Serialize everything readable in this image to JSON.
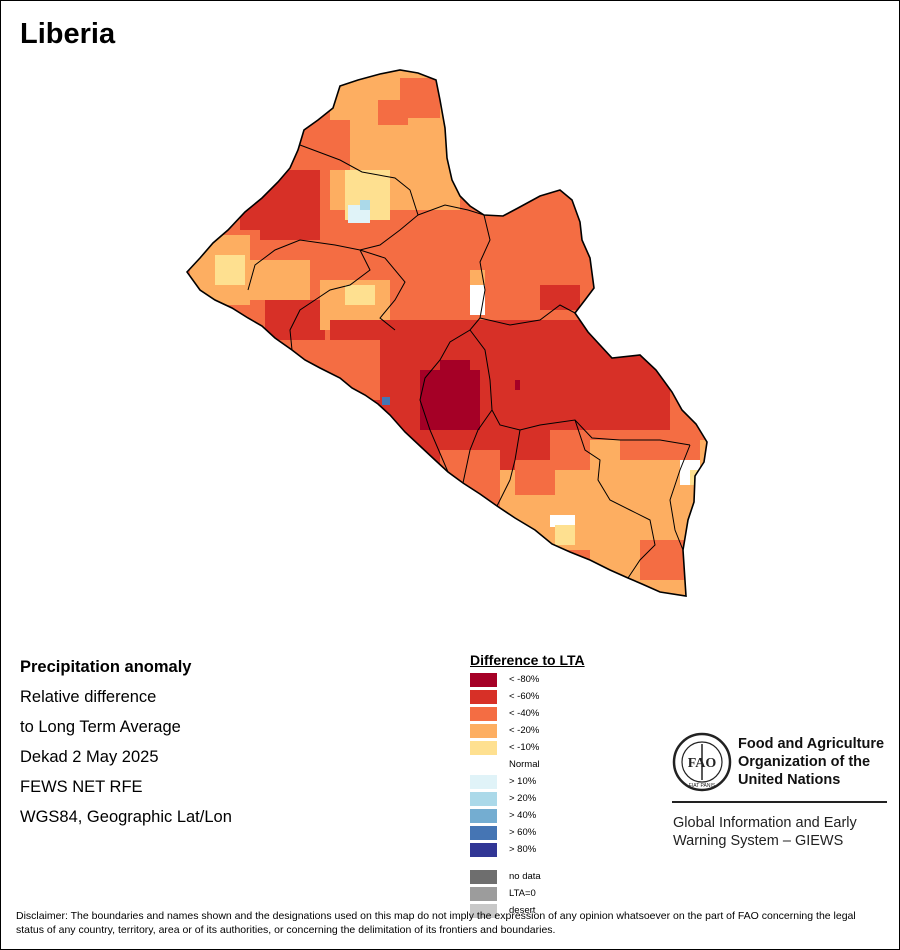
{
  "title": "Liberia",
  "info": {
    "line1": "Precipitation anomaly",
    "line2": "Relative difference",
    "line3": "to Long Term Average",
    "line4": "Dekad 2 May 2025",
    "line5": "FEWS NET RFE",
    "line6": "WGS84, Geographic Lat/Lon"
  },
  "legend": {
    "title": "Difference to LTA",
    "items": [
      {
        "label": "< -80%",
        "color": "#a50026"
      },
      {
        "label": "< -60%",
        "color": "#d73027"
      },
      {
        "label": "< -40%",
        "color": "#f46d43"
      },
      {
        "label": "< -20%",
        "color": "#fdae61"
      },
      {
        "label": "< -10%",
        "color": "#fee090"
      },
      {
        "label": "Normal",
        "color": "#ffffff"
      },
      {
        "label": "> 10%",
        "color": "#e0f3f8"
      },
      {
        "label": "> 20%",
        "color": "#abd9e9"
      },
      {
        "label": "> 40%",
        "color": "#74add1"
      },
      {
        "label": "> 60%",
        "color": "#4575b4"
      },
      {
        "label": "> 80%",
        "color": "#313695"
      }
    ],
    "extra": [
      {
        "label": "no data",
        "color": "#6e6e6e"
      },
      {
        "label": "LTA=0",
        "color": "#9c9c9c"
      },
      {
        "label": "desert",
        "color": "#c8c8c8"
      }
    ]
  },
  "fao": {
    "name1": "Food and Agriculture",
    "name2": "Organization of the",
    "name3": "United Nations",
    "logo_text": "FIAT PANIS",
    "giews1": "Global Information and Early",
    "giews2": "Warning System – GIEWS"
  },
  "disclaimer": "Disclaimer: The boundaries and names shown and the designations used on this map do not imply the expression of any opinion whatsoever on the part of FAO concerning the legal status of any country, territory, area or of its authorities, or concerning the delimitation of its frontiers and boundaries."
}
